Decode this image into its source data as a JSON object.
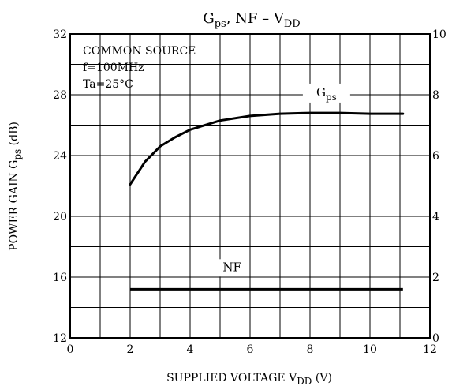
{
  "chart_data": {
    "type": "line",
    "title": {
      "main": "G",
      "sub": "ps",
      "rest": ", NF  –  V",
      "sub2": "DD"
    },
    "xlabel": {
      "main": "SUPPLIED VOLTAGE   V",
      "sub": "DD",
      "rest": "  (V)"
    },
    "ylabel_left": {
      "main": "POWER GAIN   G",
      "sub": "ps",
      "rest": "  (dB)"
    },
    "ylabel_right": "",
    "xlim": [
      0,
      12
    ],
    "ylim_left": [
      12,
      32
    ],
    "ylim_right": [
      0,
      10
    ],
    "x_ticks": [
      "0",
      "2",
      "4",
      "6",
      "8",
      "10",
      "12"
    ],
    "y_left_ticks": [
      "12",
      "16",
      "20",
      "24",
      "28",
      "32"
    ],
    "y_right_ticks": [
      "0",
      "2",
      "4",
      "6",
      "8",
      "10"
    ],
    "grid": true,
    "annotations": [
      "COMMON SOURCE",
      "f=100MHz",
      "Ta=25°C"
    ],
    "series": [
      {
        "name": "Gps",
        "label_main": "G",
        "label_sub": "ps",
        "axis": "left",
        "x": [
          2.0,
          2.5,
          3.0,
          3.5,
          4.0,
          5.0,
          6.0,
          7.0,
          8.0,
          9.0,
          10.0,
          11.1
        ],
        "y": [
          22.1,
          23.6,
          24.6,
          25.2,
          25.7,
          26.3,
          26.6,
          26.75,
          26.8,
          26.8,
          26.75,
          26.75
        ]
      },
      {
        "name": "NF",
        "label_main": "NF",
        "label_sub": "",
        "axis": "right",
        "x": [
          2.0,
          11.1
        ],
        "y": [
          1.6,
          1.6
        ]
      }
    ]
  }
}
